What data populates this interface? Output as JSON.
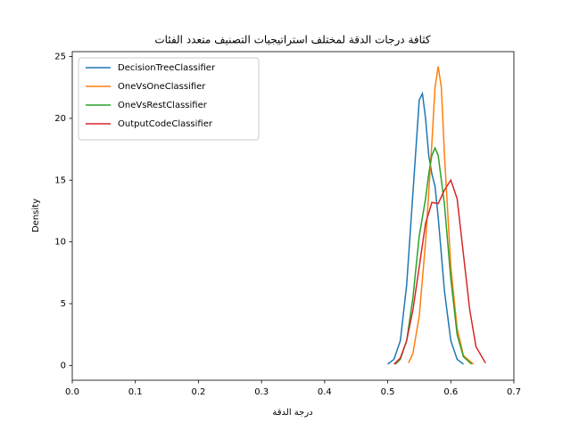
{
  "chart_data": {
    "type": "line",
    "title": "كثافة درجات الدقة لمختلف استراتيجيات التصنيف متعدد الفئات",
    "x_label": "درجة الدقة",
    "y_label": "Density",
    "xlim": [
      0,
      0.7
    ],
    "xticks": [
      {
        "value": 0,
        "label": "0.0"
      },
      0.1,
      0.2,
      0.3,
      0.4,
      0.5,
      0.6,
      0.7
    ],
    "ylim": [
      -1.2,
      25.4
    ],
    "yticks": [
      0,
      5,
      10,
      15,
      20,
      25
    ],
    "legend": "upper left",
    "grid": false,
    "series": [
      {
        "name": "DecisionTreeClassifier",
        "color": "#1f77b4",
        "x": [
          0.5,
          0.51,
          0.52,
          0.53,
          0.54,
          0.55,
          0.555,
          0.56,
          0.565,
          0.57,
          0.575,
          0.58,
          0.59,
          0.6,
          0.61,
          0.62
        ],
        "values": [
          0.1,
          0.5,
          2,
          6.5,
          14,
          21.5,
          22,
          20,
          17,
          15.5,
          14.5,
          12,
          6,
          2,
          0.5,
          0.1
        ]
      },
      {
        "name": "OneVsOneClassifier",
        "color": "#ff7f0e",
        "x": [
          0.533,
          0.54,
          0.55,
          0.56,
          0.57,
          0.575,
          0.58,
          0.585,
          0.59,
          0.6,
          0.61,
          0.62,
          0.636
        ],
        "values": [
          0.2,
          1,
          4,
          10,
          18,
          22.5,
          24.2,
          22.5,
          17,
          8,
          3,
          0.8,
          0.1
        ]
      },
      {
        "name": "OneVsRestClassifier",
        "color": "#2ca02c",
        "x": [
          0.512,
          0.52,
          0.53,
          0.54,
          0.55,
          0.56,
          0.565,
          0.57,
          0.575,
          0.58,
          0.59,
          0.6,
          0.61,
          0.62,
          0.633
        ],
        "values": [
          0.1,
          0.5,
          2,
          5.5,
          10.5,
          13.5,
          15.5,
          17,
          17.6,
          17,
          13,
          7,
          2.5,
          0.7,
          0.1
        ]
      },
      {
        "name": "OutputCodeClassifier",
        "color": "#d62728",
        "x": [
          0.51,
          0.52,
          0.53,
          0.54,
          0.55,
          0.56,
          0.57,
          0.58,
          0.59,
          0.6,
          0.61,
          0.62,
          0.63,
          0.64,
          0.655
        ],
        "values": [
          0.1,
          0.6,
          2,
          4.5,
          8,
          11.5,
          13.2,
          13.1,
          14.2,
          15,
          13.5,
          9,
          4.5,
          1.5,
          0.2
        ]
      }
    ]
  }
}
